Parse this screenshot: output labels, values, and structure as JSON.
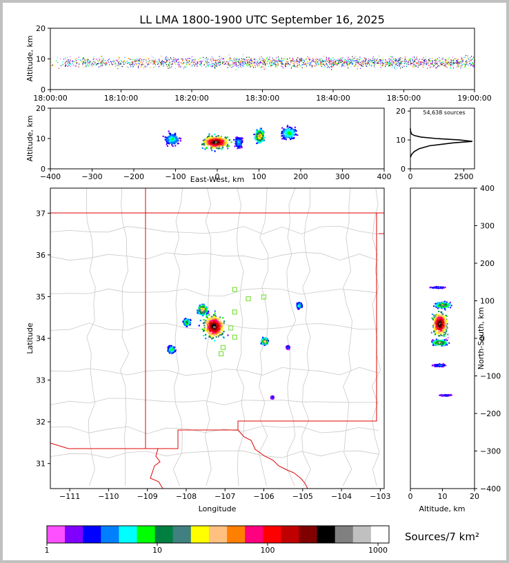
{
  "title": "LL LMA 1800-1900 UTC September 16, 2025",
  "colors": {
    "frame": "#c0c0c0",
    "state_border": "#e00000",
    "county_border": "#c8c8c8",
    "station": "#80e040"
  },
  "chart_data": [
    {
      "id": "time-height",
      "type": "scatter",
      "ylabel": "Altitude, km",
      "ylim": [
        0,
        20
      ],
      "yticks": [
        "0",
        "10",
        "20"
      ],
      "xticks": [
        "18:00:00",
        "18:10:00",
        "18:20:00",
        "18:30:00",
        "18:40:00",
        "18:50:00",
        "19:00:00"
      ],
      "xlim_minutes": [
        0,
        60
      ],
      "source_altitude_band_km": [
        5,
        13
      ]
    },
    {
      "id": "east-west-height",
      "type": "heatmap",
      "xlabel": "East-West, km",
      "ylabel": "Altitude, km",
      "xlim": [
        -400,
        400
      ],
      "ylim": [
        0,
        20
      ],
      "xticks": [
        "−400",
        "−300",
        "−200",
        "−100",
        "0",
        "100",
        "200",
        "300",
        "400"
      ],
      "yticks": [
        "0",
        "10",
        "20"
      ],
      "clusters_km": [
        {
          "x": -5,
          "z": 9,
          "spread": 35,
          "density": 0.95
        },
        {
          "x": -110,
          "z": 10,
          "spread": 20,
          "density": 0.3
        },
        {
          "x": 100,
          "z": 11,
          "spread": 12,
          "density": 0.6
        },
        {
          "x": 170,
          "z": 12,
          "spread": 20,
          "density": 0.35
        },
        {
          "x": 50,
          "z": 9,
          "spread": 10,
          "density": 0.25
        }
      ]
    },
    {
      "id": "altitude-histogram",
      "type": "line",
      "annotation": "54,638 sources",
      "xlim": [
        0,
        3000
      ],
      "ylim": [
        0,
        21
      ],
      "xticks": [
        "0",
        "2500"
      ],
      "yticks": [
        "0",
        "10",
        "20"
      ],
      "profile": [
        {
          "z": 4,
          "n": 0
        },
        {
          "z": 5,
          "n": 60
        },
        {
          "z": 6,
          "n": 180
        },
        {
          "z": 7,
          "n": 420
        },
        {
          "z": 8,
          "n": 900
        },
        {
          "z": 9,
          "n": 2000
        },
        {
          "z": 9.5,
          "n": 2900
        },
        {
          "z": 10,
          "n": 2300
        },
        {
          "z": 10.5,
          "n": 1200
        },
        {
          "z": 11,
          "n": 500
        },
        {
          "z": 11.5,
          "n": 200
        },
        {
          "z": 12,
          "n": 60
        },
        {
          "z": 13,
          "n": 10
        },
        {
          "z": 14,
          "n": 0
        }
      ]
    },
    {
      "id": "plan-view",
      "type": "scatter",
      "xlabel": "Longitude",
      "ylabel": "Latitude",
      "xlim": [
        -111.5,
        -102.9
      ],
      "ylim": [
        30.4,
        37.6
      ],
      "xticks": [
        "−111",
        "−110",
        "−109",
        "−108",
        "−107",
        "−106",
        "−105",
        "−104",
        "−103"
      ],
      "yticks": [
        "31",
        "32",
        "33",
        "34",
        "35",
        "36",
        "37"
      ],
      "clusters_deg": [
        {
          "lon": -107.3,
          "lat": 34.3,
          "spread": 0.35,
          "density": 0.95
        },
        {
          "lon": -107.6,
          "lat": 34.7,
          "spread": 0.15,
          "density": 0.6
        },
        {
          "lon": -108.0,
          "lat": 34.4,
          "spread": 0.12,
          "density": 0.4
        },
        {
          "lon": -106.0,
          "lat": 33.95,
          "spread": 0.1,
          "density": 0.6
        },
        {
          "lon": -108.4,
          "lat": 33.75,
          "spread": 0.12,
          "density": 0.35
        },
        {
          "lon": -105.1,
          "lat": 34.8,
          "spread": 0.1,
          "density": 0.3
        },
        {
          "lon": -105.4,
          "lat": 33.8,
          "spread": 0.05,
          "density": 0.2
        },
        {
          "lon": -105.8,
          "lat": 32.6,
          "spread": 0.05,
          "density": 0.15
        }
      ],
      "stations": [
        {
          "lon": -106.75,
          "lat": 35.17
        },
        {
          "lon": -106.4,
          "lat": 34.95
        },
        {
          "lon": -106.0,
          "lat": 34.99
        },
        {
          "lon": -106.75,
          "lat": 34.63
        },
        {
          "lon": -106.75,
          "lat": 34.03
        },
        {
          "lon": -107.05,
          "lat": 33.78
        },
        {
          "lon": -107.1,
          "lat": 33.63
        },
        {
          "lon": -106.85,
          "lat": 34.25
        }
      ]
    },
    {
      "id": "north-south-height",
      "type": "heatmap",
      "xlabel": "Altitude, km",
      "ylabel": "North-South, km",
      "xlim": [
        0,
        20
      ],
      "ylim": [
        -400,
        400
      ],
      "xticks": [
        "0",
        "10",
        "20"
      ],
      "yticks": [
        "400",
        "300",
        "200",
        "100",
        "0",
        "−100",
        "−200",
        "−300",
        "−400"
      ],
      "clusters_km": [
        {
          "y": 40,
          "z": 9,
          "spread": 40,
          "density": 0.95
        },
        {
          "y": 90,
          "z": 10,
          "spread": 10,
          "density": 0.5
        },
        {
          "y": -10,
          "z": 9,
          "spread": 10,
          "density": 0.5
        },
        {
          "y": -70,
          "z": 9,
          "spread": 5,
          "density": 0.2
        },
        {
          "y": 137,
          "z": 8.5,
          "spread": 3,
          "density": 0.2
        },
        {
          "y": -150,
          "z": 11,
          "spread": 3,
          "density": 0.15
        }
      ]
    },
    {
      "id": "colorbar",
      "type": "table",
      "label": "Sources/7 km²",
      "ticks": [
        "1",
        "10",
        "100",
        "1000"
      ],
      "colors": [
        "#ff50ff",
        "#8000ff",
        "#0000ff",
        "#0080ff",
        "#00ffff",
        "#00ff00",
        "#008040",
        "#408080",
        "#ffff00",
        "#ffc080",
        "#ff8000",
        "#ff0080",
        "#ff0000",
        "#c00000",
        "#800000",
        "#000000",
        "#808080",
        "#c0c0c0",
        "#ffffff"
      ]
    }
  ]
}
